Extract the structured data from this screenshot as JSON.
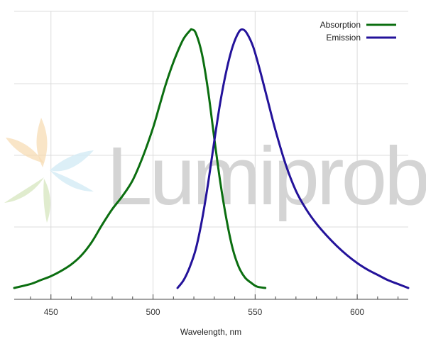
{
  "chart_data": {
    "type": "line",
    "title": "",
    "xlabel": "Wavelength, nm",
    "ylabel": "",
    "xlim": [
      432,
      625
    ],
    "ylim": [
      0,
      1.0
    ],
    "x_ticks": [
      450,
      500,
      550,
      600
    ],
    "x_minor_step": 10,
    "grid": {
      "vertical": true,
      "horizontal": true
    },
    "legend_position": "top-right",
    "watermark": "Lumiprobe",
    "series": [
      {
        "name": "Absorption",
        "color": "#0b6e10",
        "x": [
          432,
          440,
          445,
          450,
          455,
          460,
          465,
          470,
          475,
          480,
          485,
          490,
          495,
          500,
          503,
          506,
          509,
          512,
          515,
          518,
          519,
          521,
          524,
          527,
          530,
          533,
          536,
          539,
          542,
          545,
          548,
          551,
          555
        ],
        "y": [
          0.0,
          0.015,
          0.03,
          0.045,
          0.065,
          0.09,
          0.125,
          0.175,
          0.24,
          0.3,
          0.35,
          0.41,
          0.5,
          0.61,
          0.69,
          0.77,
          0.84,
          0.9,
          0.95,
          0.98,
          0.985,
          0.97,
          0.89,
          0.75,
          0.57,
          0.4,
          0.26,
          0.15,
          0.08,
          0.04,
          0.02,
          0.005,
          0.0
        ]
      },
      {
        "name": "Emission",
        "color": "#23129a",
        "x": [
          512,
          515,
          518,
          521,
          524,
          527,
          530,
          533,
          536,
          539,
          542,
          544,
          546,
          549,
          552,
          556,
          560,
          565,
          570,
          575,
          580,
          585,
          590,
          595,
          600,
          605,
          610,
          615,
          620,
          625
        ],
        "y": [
          0.0,
          0.03,
          0.08,
          0.15,
          0.26,
          0.4,
          0.56,
          0.71,
          0.83,
          0.92,
          0.975,
          0.985,
          0.97,
          0.92,
          0.84,
          0.72,
          0.6,
          0.47,
          0.37,
          0.3,
          0.245,
          0.2,
          0.16,
          0.125,
          0.095,
          0.07,
          0.05,
          0.03,
          0.015,
          0.0
        ]
      }
    ]
  }
}
